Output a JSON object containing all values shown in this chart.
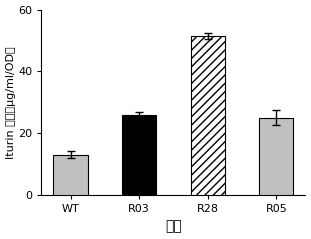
{
  "categories": [
    "WT",
    "R03",
    "R28",
    "R05"
  ],
  "values": [
    13.0,
    26.0,
    51.5,
    25.0
  ],
  "errors": [
    1.2,
    0.8,
    1.0,
    2.5
  ],
  "bar_colors": [
    "#c0c0c0",
    "#000000",
    "#ffffff",
    "#c0c0c0"
  ],
  "hatch_patterns": [
    "",
    "",
    "////",
    ""
  ],
  "edgecolors": [
    "#000000",
    "#000000",
    "#000000",
    "#000000"
  ],
  "xlabel": "菌株",
  "ylabel": "Iturin 产量（μg/ml/OD）",
  "ylim": [
    0,
    60
  ],
  "yticks": [
    0,
    20,
    40,
    60
  ],
  "bar_width": 0.5,
  "capsize": 3,
  "ecolor": "#000000",
  "elinewidth": 1.0,
  "xlabel_fontsize": 10,
  "ylabel_fontsize": 8,
  "tick_fontsize": 8
}
